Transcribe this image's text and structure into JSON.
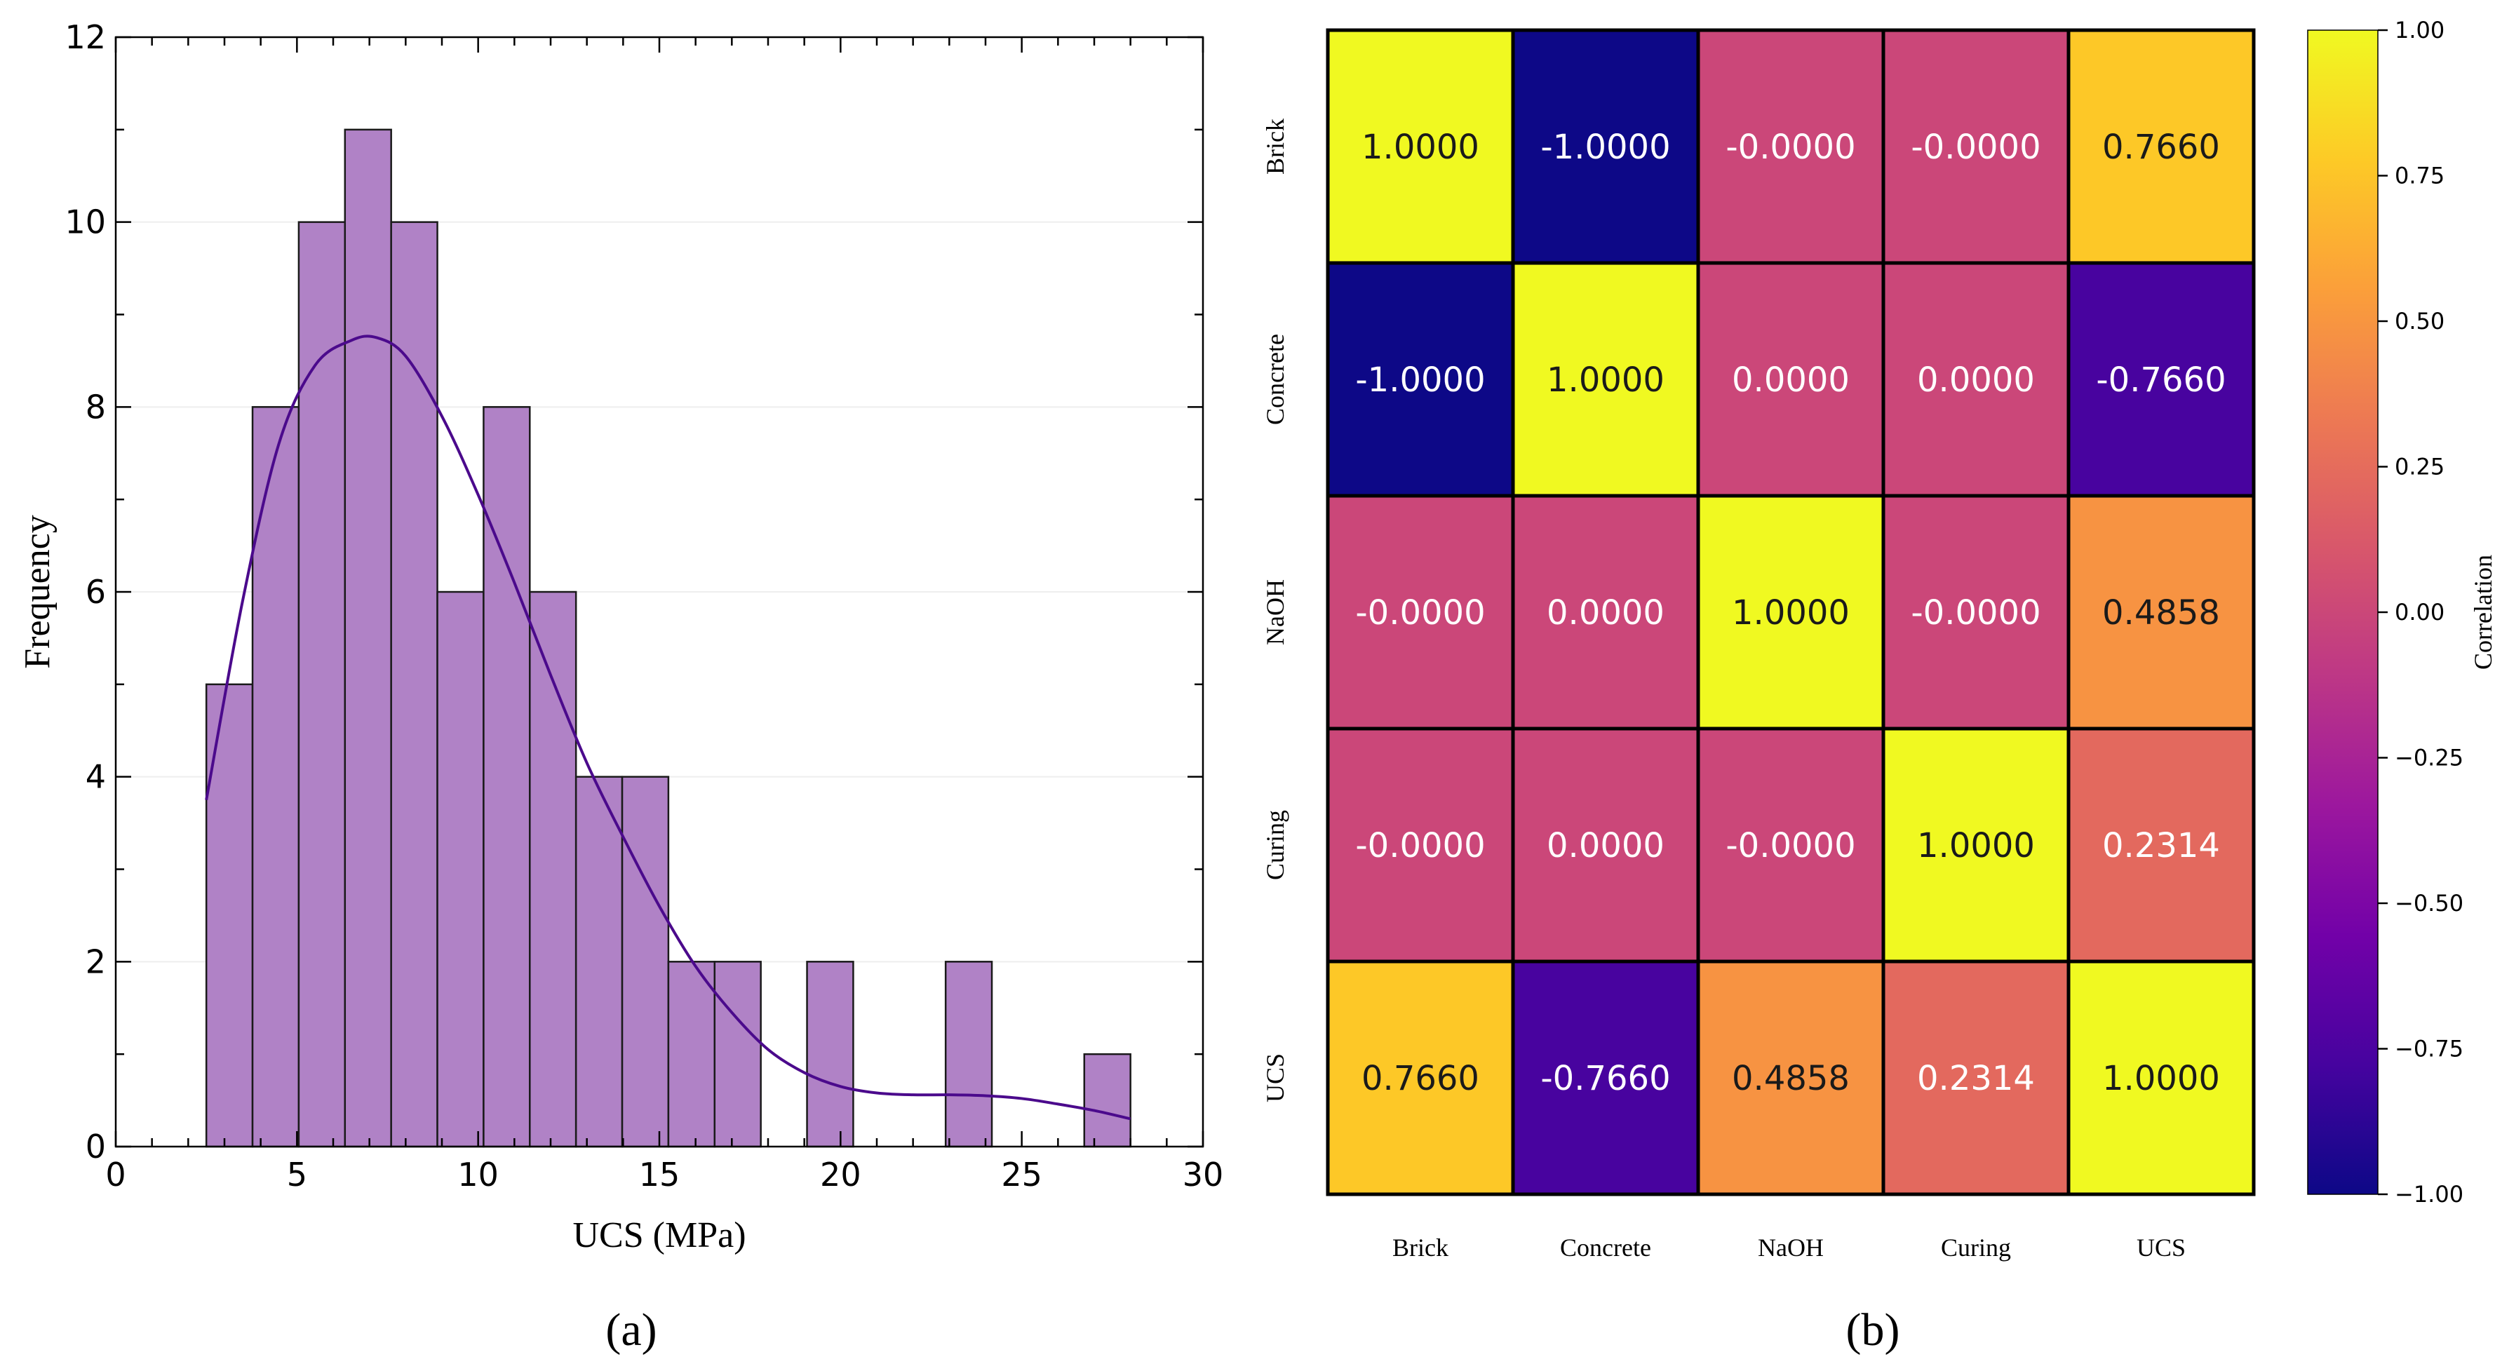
{
  "colors": {
    "bar_fill": "#b082c6",
    "bar_edge": "#1a1a1a",
    "kde_line": "#4b0a8c",
    "grid": "#eeeeee",
    "cmap": [
      "#0d0887",
      "#46039f",
      "#7201a8",
      "#9c179e",
      "#bd3786",
      "#d8576b",
      "#ed7953",
      "#fb9f3a",
      "#fdca26",
      "#f0f921"
    ]
  },
  "chart_data": [
    {
      "type": "bar",
      "caption": "(a)",
      "xlabel": "UCS (MPa)",
      "ylabel": "Frequency",
      "xlim": [
        0,
        30
      ],
      "ylim": [
        0,
        12
      ],
      "xticks": [
        "0",
        "5",
        "10",
        "15",
        "20",
        "25",
        "30"
      ],
      "yticks": [
        "0",
        "2",
        "4",
        "6",
        "8",
        "10",
        "12"
      ],
      "bin_width": 1.275,
      "bins": [
        {
          "x0": 2.5,
          "value": 5
        },
        {
          "x0": 3.775,
          "value": 8
        },
        {
          "x0": 5.05,
          "value": 10
        },
        {
          "x0": 6.325,
          "value": 11
        },
        {
          "x0": 7.6,
          "value": 10
        },
        {
          "x0": 8.875,
          "value": 6
        },
        {
          "x0": 10.15,
          "value": 8
        },
        {
          "x0": 11.425,
          "value": 6
        },
        {
          "x0": 12.7,
          "value": 4
        },
        {
          "x0": 13.975,
          "value": 4
        },
        {
          "x0": 15.25,
          "value": 2
        },
        {
          "x0": 16.525,
          "value": 2
        },
        {
          "x0": 19.075,
          "value": 2
        },
        {
          "x0": 22.9,
          "value": 2
        },
        {
          "x0": 26.725,
          "value": 1
        }
      ],
      "kde": {
        "x": [
          2.5,
          3.5,
          4.5,
          5.5,
          6.5,
          7.2,
          8.0,
          9.0,
          10.0,
          11.0,
          12.0,
          13.0,
          14.0,
          15.0,
          16.0,
          17.0,
          18.0,
          19.0,
          20.0,
          21.0,
          22.0,
          23.0,
          24.0,
          25.0,
          26.0,
          27.0,
          28.0
        ],
        "y": [
          3.75,
          5.9,
          7.6,
          8.45,
          8.72,
          8.75,
          8.55,
          7.9,
          7.05,
          6.1,
          5.1,
          4.15,
          3.35,
          2.6,
          1.95,
          1.45,
          1.05,
          0.8,
          0.65,
          0.58,
          0.56,
          0.56,
          0.55,
          0.52,
          0.46,
          0.39,
          0.3
        ]
      }
    },
    {
      "type": "heatmap",
      "caption": "(b)",
      "labels": [
        "Brick",
        "Concrete",
        "NaOH",
        "Curing",
        "UCS"
      ],
      "values": [
        [
          1.0,
          -1.0,
          -0.0,
          -0.0,
          0.766
        ],
        [
          -1.0,
          1.0,
          0.0,
          0.0,
          -0.766
        ],
        [
          -0.0,
          0.0,
          1.0,
          -0.0,
          0.4858
        ],
        [
          -0.0,
          0.0,
          -0.0,
          1.0,
          0.2314
        ],
        [
          0.766,
          -0.766,
          0.4858,
          0.2314,
          1.0
        ]
      ],
      "cell_text": [
        [
          "1.0000",
          "-1.0000",
          "-0.0000",
          "-0.0000",
          "0.7660"
        ],
        [
          "-1.0000",
          "1.0000",
          "0.0000",
          "0.0000",
          "-0.7660"
        ],
        [
          "-0.0000",
          "0.0000",
          "1.0000",
          "-0.0000",
          "0.4858"
        ],
        [
          "-0.0000",
          "0.0000",
          "-0.0000",
          "1.0000",
          "0.2314"
        ],
        [
          "0.7660",
          "-0.7660",
          "0.4858",
          "0.2314",
          "1.0000"
        ]
      ],
      "colorbar": {
        "label": "Correlation",
        "range": [
          -1,
          1
        ],
        "ticks": [
          "1.00",
          "0.75",
          "0.50",
          "0.25",
          "0.00",
          "−0.25",
          "−0.50",
          "−0.75",
          "−1.00"
        ]
      }
    }
  ]
}
